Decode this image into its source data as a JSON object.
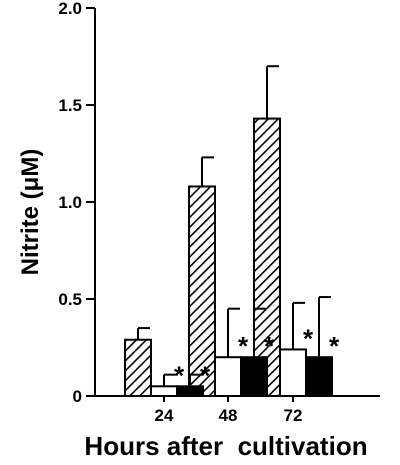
{
  "chart_data": {
    "type": "bar",
    "title": "",
    "xlabel": "Hours after  cultivation",
    "ylabel": "Nitrite (μM)",
    "categories": [
      "24",
      "48",
      "72"
    ],
    "ylim": [
      0,
      2.0
    ],
    "yticks": [
      "0",
      "0.5",
      "1.0",
      "1.5",
      "2.0"
    ],
    "grid": false,
    "legend": "none",
    "significance_marker": "*",
    "series": [
      {
        "fill": "hatched",
        "color": "#000000",
        "values": [
          0.29,
          1.08,
          1.43
        ],
        "errors": [
          0.06,
          0.15,
          0.27
        ],
        "significant": [
          false,
          false,
          false
        ]
      },
      {
        "fill": "white",
        "color": "#ffffff",
        "values": [
          0.05,
          0.2,
          0.24
        ],
        "errors": [
          0.06,
          0.25,
          0.24
        ],
        "significant": [
          true,
          true,
          true
        ]
      },
      {
        "fill": "black",
        "color": "#000000",
        "values": [
          0.05,
          0.2,
          0.2
        ],
        "errors": [
          0.06,
          0.25,
          0.31
        ],
        "significant": [
          true,
          true,
          true
        ]
      }
    ]
  }
}
